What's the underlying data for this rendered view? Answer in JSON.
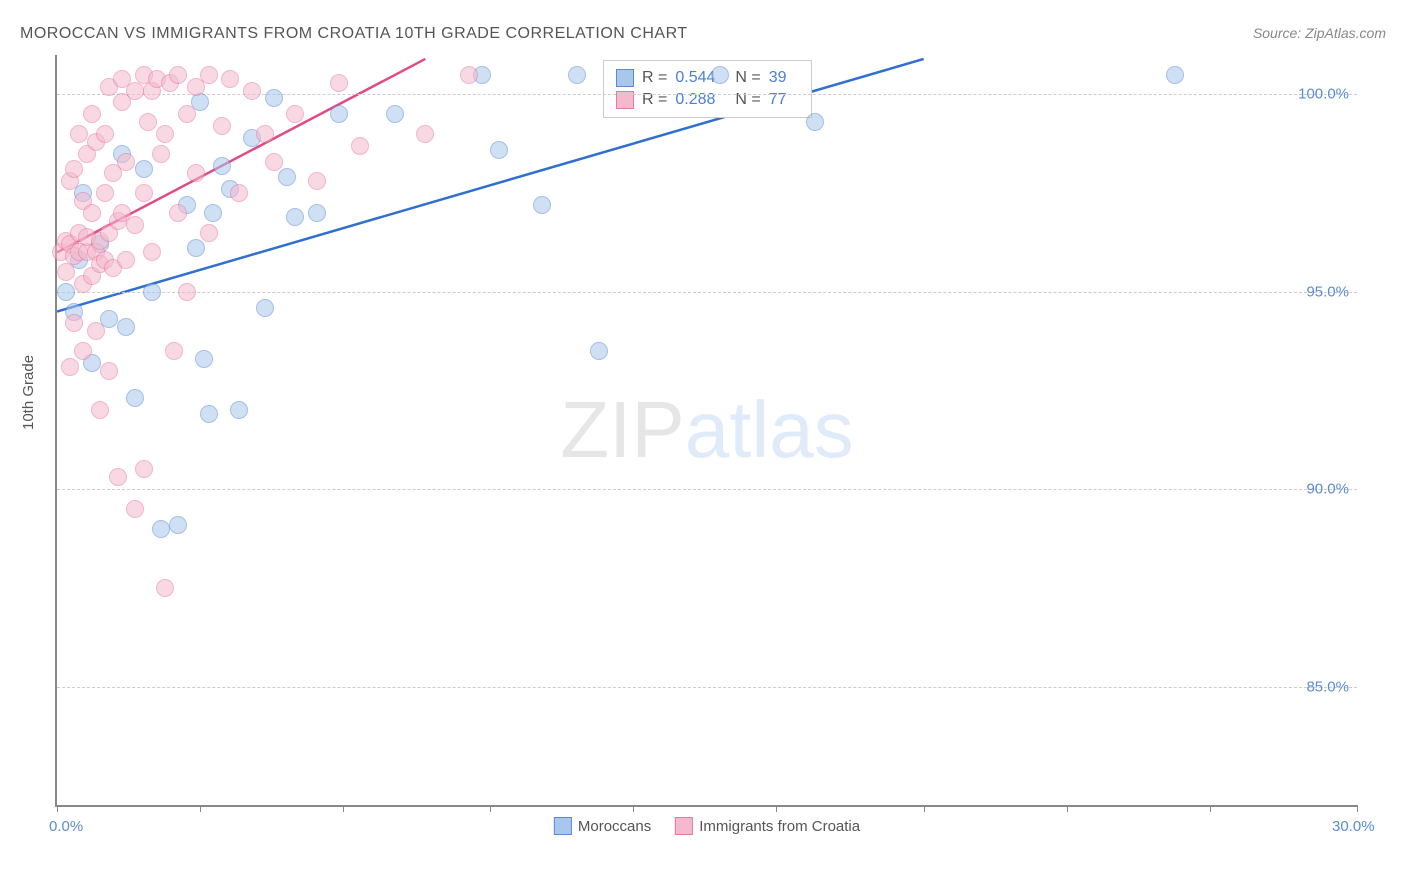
{
  "title": "MOROCCAN VS IMMIGRANTS FROM CROATIA 10TH GRADE CORRELATION CHART",
  "source_label": "Source: ZipAtlas.com",
  "y_axis_label": "10th Grade",
  "watermark": {
    "part1": "ZIP",
    "part2": "atlas"
  },
  "chart": {
    "type": "scatter",
    "xlim": [
      0,
      30
    ],
    "ylim": [
      82,
      101
    ],
    "x_ticks": [
      0,
      3.3,
      6.6,
      10,
      13.3,
      16.6,
      20,
      23.3,
      26.6,
      30
    ],
    "x_tick_labels": {
      "0": "0.0%",
      "30": "30.0%"
    },
    "y_ticks": [
      85,
      90,
      95,
      100
    ],
    "y_tick_labels": {
      "85": "85.0%",
      "90": "90.0%",
      "95": "95.0%",
      "100": "100.0%"
    },
    "background_color": "#ffffff",
    "grid_color": "#cccccc",
    "point_radius": 8,
    "point_opacity": 0.55,
    "series": [
      {
        "name": "Moroccans",
        "fill_color": "#a9c7ec",
        "stroke_color": "#5b8bd4",
        "trend_color": "#2f6fd0",
        "trend_line": {
          "x1": 0,
          "y1": 94.5,
          "x2": 20,
          "y2": 100.9
        },
        "r_value": "0.544",
        "n_value": "39",
        "points": [
          [
            0.2,
            95.0
          ],
          [
            0.4,
            94.5
          ],
          [
            0.5,
            95.8
          ],
          [
            0.6,
            97.5
          ],
          [
            0.8,
            93.2
          ],
          [
            1.0,
            96.2
          ],
          [
            1.2,
            94.3
          ],
          [
            1.5,
            98.5
          ],
          [
            1.6,
            94.1
          ],
          [
            1.8,
            92.3
          ],
          [
            2.0,
            98.1
          ],
          [
            2.2,
            95.0
          ],
          [
            2.4,
            89.0
          ],
          [
            2.8,
            89.1
          ],
          [
            3.0,
            97.2
          ],
          [
            3.2,
            96.1
          ],
          [
            3.3,
            99.8
          ],
          [
            3.4,
            93.3
          ],
          [
            3.5,
            91.9
          ],
          [
            3.6,
            97.0
          ],
          [
            3.8,
            98.2
          ],
          [
            4.0,
            97.6
          ],
          [
            4.2,
            92.0
          ],
          [
            4.5,
            98.9
          ],
          [
            4.8,
            94.6
          ],
          [
            5.0,
            99.9
          ],
          [
            5.3,
            97.9
          ],
          [
            5.5,
            96.9
          ],
          [
            6.0,
            97.0
          ],
          [
            6.5,
            99.5
          ],
          [
            7.8,
            99.5
          ],
          [
            9.8,
            100.5
          ],
          [
            10.2,
            98.6
          ],
          [
            11.2,
            97.2
          ],
          [
            12.0,
            100.5
          ],
          [
            12.5,
            93.5
          ],
          [
            15.3,
            100.5
          ],
          [
            17.5,
            99.3
          ],
          [
            25.8,
            100.5
          ]
        ]
      },
      {
        "name": "Immigrants from Croatia",
        "fill_color": "#f4b9cd",
        "stroke_color": "#e77aa3",
        "trend_color": "#e04b83",
        "trend_line": {
          "x1": 0,
          "y1": 96.0,
          "x2": 8.5,
          "y2": 100.9
        },
        "r_value": "0.288",
        "n_value": "77",
        "points": [
          [
            0.1,
            96.0
          ],
          [
            0.2,
            96.3
          ],
          [
            0.2,
            95.5
          ],
          [
            0.3,
            97.8
          ],
          [
            0.3,
            96.2
          ],
          [
            0.3,
            93.1
          ],
          [
            0.4,
            98.1
          ],
          [
            0.4,
            95.9
          ],
          [
            0.4,
            94.2
          ],
          [
            0.5,
            96.5
          ],
          [
            0.5,
            99.0
          ],
          [
            0.5,
            96.0
          ],
          [
            0.6,
            97.3
          ],
          [
            0.6,
            95.2
          ],
          [
            0.6,
            93.5
          ],
          [
            0.7,
            98.5
          ],
          [
            0.7,
            96.0
          ],
          [
            0.7,
            96.4
          ],
          [
            0.8,
            99.5
          ],
          [
            0.8,
            95.4
          ],
          [
            0.8,
            97.0
          ],
          [
            0.9,
            96.0
          ],
          [
            0.9,
            94.0
          ],
          [
            0.9,
            98.8
          ],
          [
            1.0,
            95.7
          ],
          [
            1.0,
            96.3
          ],
          [
            1.0,
            92.0
          ],
          [
            1.1,
            97.5
          ],
          [
            1.1,
            99.0
          ],
          [
            1.1,
            95.8
          ],
          [
            1.2,
            100.2
          ],
          [
            1.2,
            96.5
          ],
          [
            1.2,
            93.0
          ],
          [
            1.3,
            98.0
          ],
          [
            1.3,
            95.6
          ],
          [
            1.4,
            90.3
          ],
          [
            1.4,
            96.8
          ],
          [
            1.5,
            99.8
          ],
          [
            1.5,
            97.0
          ],
          [
            1.5,
            100.4
          ],
          [
            1.6,
            95.8
          ],
          [
            1.6,
            98.3
          ],
          [
            1.8,
            100.1
          ],
          [
            1.8,
            89.5
          ],
          [
            1.8,
            96.7
          ],
          [
            2.0,
            100.5
          ],
          [
            2.0,
            90.5
          ],
          [
            2.0,
            97.5
          ],
          [
            2.1,
            99.3
          ],
          [
            2.2,
            100.1
          ],
          [
            2.2,
            96.0
          ],
          [
            2.3,
            100.4
          ],
          [
            2.4,
            98.5
          ],
          [
            2.5,
            87.5
          ],
          [
            2.5,
            99.0
          ],
          [
            2.6,
            100.3
          ],
          [
            2.7,
            93.5
          ],
          [
            2.8,
            97.0
          ],
          [
            2.8,
            100.5
          ],
          [
            3.0,
            99.5
          ],
          [
            3.0,
            95.0
          ],
          [
            3.2,
            100.2
          ],
          [
            3.2,
            98.0
          ],
          [
            3.5,
            100.5
          ],
          [
            3.5,
            96.5
          ],
          [
            3.8,
            99.2
          ],
          [
            4.0,
            100.4
          ],
          [
            4.2,
            97.5
          ],
          [
            4.5,
            100.1
          ],
          [
            4.8,
            99.0
          ],
          [
            5.0,
            98.3
          ],
          [
            5.5,
            99.5
          ],
          [
            6.0,
            97.8
          ],
          [
            6.5,
            100.3
          ],
          [
            7.0,
            98.7
          ],
          [
            8.5,
            99.0
          ],
          [
            9.5,
            100.5
          ]
        ]
      }
    ],
    "stats_box": {
      "position_x_percent": 42,
      "r_label": "R =",
      "n_label": "N ="
    },
    "legend": {
      "items": [
        "Moroccans",
        "Immigrants from Croatia"
      ]
    }
  }
}
